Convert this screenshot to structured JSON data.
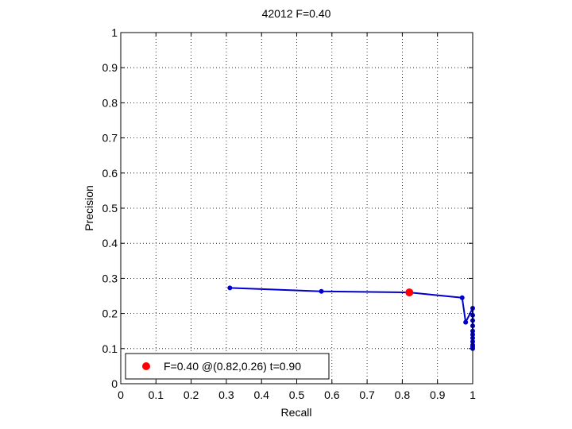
{
  "chart_data": {
    "type": "line",
    "title": "42012 F=0.40",
    "xlabel": "Recall",
    "ylabel": "Precision",
    "xlim": [
      0,
      1
    ],
    "ylim": [
      0,
      1
    ],
    "grid": true,
    "xticks": [
      "0",
      "0.1",
      "0.2",
      "0.3",
      "0.4",
      "0.5",
      "0.6",
      "0.7",
      "0.8",
      "0.9",
      "1"
    ],
    "yticks": [
      "0",
      "0.1",
      "0.2",
      "0.3",
      "0.4",
      "0.5",
      "0.6",
      "0.7",
      "0.8",
      "0.9",
      "1"
    ],
    "series": [
      {
        "color": "#0000cc",
        "x": [
          0.31,
          0.57,
          0.82,
          0.97,
          0.98,
          1.0,
          1.0,
          1.0,
          1.0,
          1.0,
          1.0,
          1.0,
          1.0,
          1.0,
          1.0,
          1.0
        ],
        "y": [
          0.273,
          0.263,
          0.26,
          0.245,
          0.175,
          0.215,
          0.195,
          0.18,
          0.165,
          0.15,
          0.14,
          0.13,
          0.12,
          0.11,
          0.105,
          0.1
        ]
      }
    ],
    "highlight": {
      "x": 0.82,
      "y": 0.26,
      "color": "#ff0000"
    },
    "legend": {
      "position": "bottom-left",
      "text": "F=0.40 @(0.82,0.26) t=0.90"
    }
  }
}
